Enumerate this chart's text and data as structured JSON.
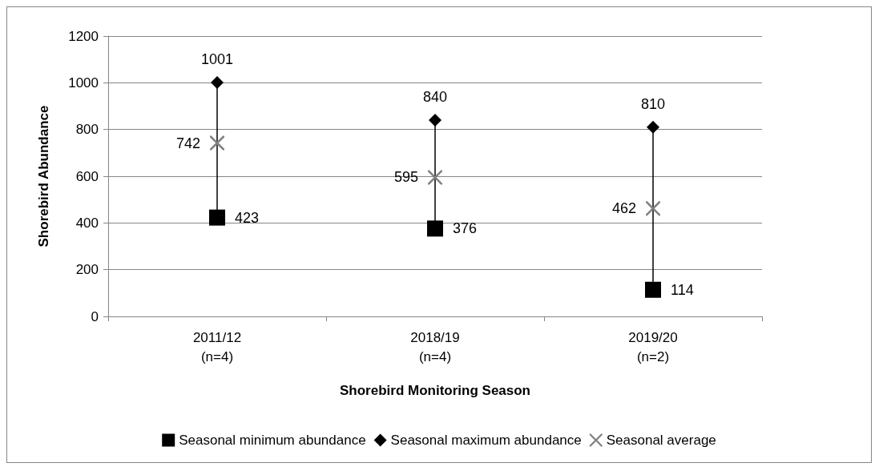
{
  "chart_data": {
    "type": "scatter",
    "xlabel": "Shorebird Monitoring Season",
    "ylabel": "Shorebird Abundance",
    "categories": [
      "2011/12\n(n=4)",
      "2018/19\n(n=4)",
      "2019/20\n(n=2)"
    ],
    "series": [
      {
        "name": "Seasonal minimum abundance",
        "color": "#000000",
        "marker": "square",
        "values": [
          423,
          376,
          114
        ]
      },
      {
        "name": "Seasonal maximum abundance",
        "color": "#000000",
        "marker": "diamond",
        "values": [
          1001,
          840,
          810
        ]
      },
      {
        "name": "Seasonal average",
        "color": "#808080",
        "marker": "cross",
        "values": [
          742,
          595,
          462
        ]
      }
    ],
    "ylim": [
      0,
      1200
    ],
    "yticks": [
      0,
      200,
      400,
      600,
      800,
      1000,
      1200
    ],
    "grid": "y",
    "legend": "bottom",
    "data_labels": true
  }
}
